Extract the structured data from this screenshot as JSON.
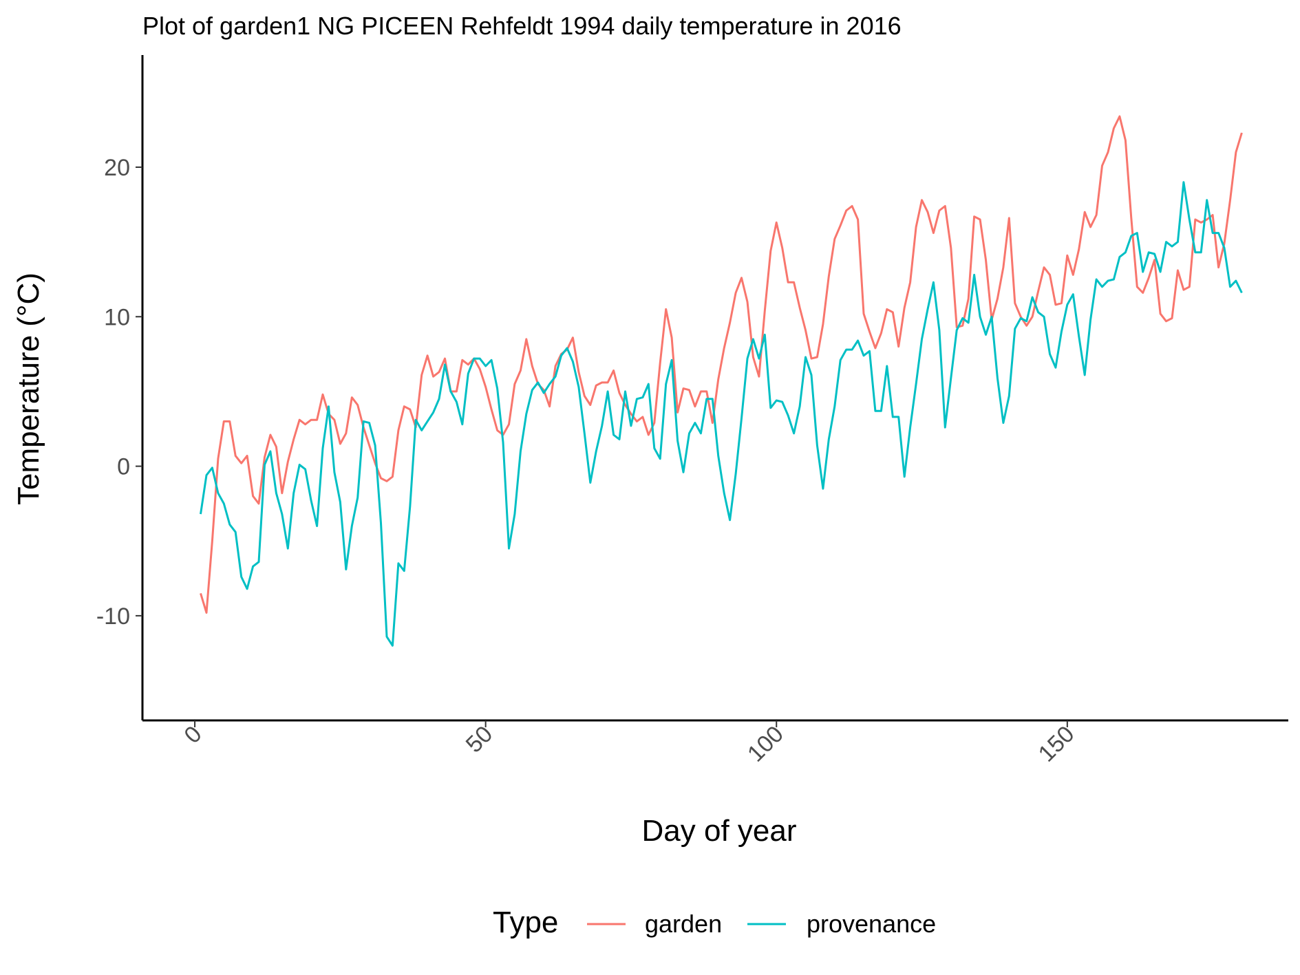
{
  "chart_data": {
    "type": "line",
    "title": "Plot of garden1 NG PICEEN Rehfeldt 1994 daily temperature in 2016",
    "xlabel": "Day of year",
    "ylabel": "Temperature (°C)",
    "xlim": [
      -9,
      188
    ],
    "ylim": [
      -17,
      27.5
    ],
    "x_ticks": [
      0,
      50,
      100,
      150
    ],
    "x_tick_labels": [
      "0",
      "50",
      "100",
      "150"
    ],
    "y_ticks": [
      -10,
      0,
      10,
      20
    ],
    "y_tick_labels": [
      "-10",
      "0",
      "10",
      "20"
    ],
    "grid": false,
    "legend": {
      "title": "Type",
      "position": "bottom"
    },
    "x": [
      1,
      2,
      3,
      4,
      5,
      6,
      7,
      8,
      9,
      10,
      11,
      12,
      13,
      14,
      15,
      16,
      17,
      18,
      19,
      20,
      21,
      22,
      23,
      24,
      25,
      26,
      27,
      28,
      29,
      30,
      31,
      32,
      33,
      34,
      35,
      36,
      37,
      38,
      39,
      40,
      41,
      42,
      43,
      44,
      45,
      46,
      47,
      48,
      49,
      50,
      51,
      52,
      53,
      54,
      55,
      56,
      57,
      58,
      59,
      60,
      61,
      62,
      63,
      64,
      65,
      66,
      67,
      68,
      69,
      70,
      71,
      72,
      73,
      74,
      75,
      76,
      77,
      78,
      79,
      80,
      81,
      82,
      83,
      84,
      85,
      86,
      87,
      88,
      89,
      90,
      91,
      92,
      93,
      94,
      95,
      96,
      97,
      98,
      99,
      100,
      101,
      102,
      103,
      104,
      105,
      106,
      107,
      108,
      109,
      110,
      111,
      112,
      113,
      114,
      115,
      116,
      117,
      118,
      119,
      120,
      121,
      122,
      123,
      124,
      125,
      126,
      127,
      128,
      129,
      130,
      131,
      132,
      133,
      134,
      135,
      136,
      137,
      138,
      139,
      140,
      141,
      142,
      143,
      144,
      145,
      146,
      147,
      148,
      149,
      150,
      151,
      152,
      153,
      154,
      155,
      156,
      157,
      158,
      159,
      160,
      161,
      162,
      163,
      164,
      165,
      166,
      167,
      168,
      169,
      170,
      171,
      172,
      173,
      174,
      175,
      176,
      177,
      178,
      179,
      180
    ],
    "series": [
      {
        "name": "garden",
        "color": "#F8766D",
        "values": [
          -8.5,
          -9.8,
          -5,
          0.5,
          3.0,
          3.0,
          0.7,
          0.2,
          0.7,
          -2.0,
          -2.5,
          0.6,
          2.1,
          1.3,
          -1.8,
          0.3,
          1.8,
          3.1,
          2.8,
          3.1,
          3.1,
          4.8,
          3.5,
          3.1,
          1.5,
          2.2,
          4.6,
          4.1,
          2.6,
          1.4,
          0.2,
          -0.8,
          -1.0,
          -0.7,
          2.4,
          4.0,
          3.8,
          2.6,
          6.1,
          7.4,
          6.0,
          6.3,
          7.2,
          5.0,
          5.0,
          7.1,
          6.8,
          7.2,
          6.5,
          5.3,
          3.8,
          2.4,
          2.1,
          2.8,
          5.5,
          6.4,
          8.5,
          6.7,
          5.5,
          5.1,
          4.0,
          6.7,
          7.5,
          7.8,
          8.6,
          6.3,
          4.7,
          4.1,
          5.4,
          5.6,
          5.6,
          6.4,
          4.9,
          4.1,
          3.5,
          3.0,
          3.3,
          2.1,
          2.9,
          6.9,
          10.5,
          8.6,
          3.6,
          5.2,
          5.1,
          4.0,
          5.0,
          5.0,
          2.9,
          5.8,
          7.9,
          9.6,
          11.6,
          12.6,
          11.0,
          7.3,
          6.0,
          10.4,
          14.4,
          16.3,
          14.6,
          12.3,
          12.3,
          10.6,
          9.1,
          7.2,
          7.3,
          9.5,
          12.7,
          15.2,
          16.1,
          17.1,
          17.4,
          16.5,
          10.2,
          9.0,
          7.9,
          8.9,
          10.5,
          10.3,
          8.0,
          10.6,
          12.3,
          16.0,
          17.8,
          17.0,
          15.6,
          17.1,
          17.4,
          14.6,
          9.3,
          9.4,
          11.2,
          16.7,
          16.5,
          13.8,
          9.8,
          11.2,
          13.3,
          16.6,
          10.9,
          10.0,
          9.4,
          10.0,
          11.7,
          13.3,
          12.8,
          10.8,
          10.9,
          14.1,
          12.8,
          14.5,
          17.0,
          16.0,
          16.8,
          20.1,
          21.0,
          22.6,
          23.4,
          21.8,
          16.6,
          12.0,
          11.6,
          12.6,
          13.8,
          10.2,
          9.7,
          9.9,
          13.1,
          11.8,
          12.0,
          16.5,
          16.3,
          16.5,
          16.8,
          13.3,
          14.9,
          17.8,
          21.0,
          22.3
        ]
      },
      {
        "name": "provenance",
        "color": "#00BFC4",
        "values": [
          -3.2,
          -0.6,
          -0.1,
          -1.8,
          -2.5,
          -3.9,
          -4.4,
          -7.4,
          -8.2,
          -6.7,
          -6.4,
          0.1,
          1.0,
          -1.8,
          -3.2,
          -5.5,
          -1.8,
          0.1,
          -0.2,
          -2.3,
          -4.0,
          1.2,
          4.0,
          -0.4,
          -2.4,
          -6.9,
          -4.0,
          -2.1,
          3.0,
          2.9,
          1.4,
          -3.8,
          -11.4,
          -12.0,
          -6.5,
          -7.0,
          -2.7,
          3.1,
          2.4,
          3.0,
          3.6,
          4.5,
          6.8,
          5.0,
          4.3,
          2.8,
          6.2,
          7.2,
          7.2,
          6.7,
          7.1,
          5.2,
          1.6,
          -5.5,
          -3.2,
          1.0,
          3.5,
          5.1,
          5.6,
          4.9,
          5.5,
          6.0,
          7.4,
          7.9,
          7.0,
          5.3,
          2.2,
          -1.1,
          1.0,
          2.7,
          5.0,
          2.1,
          1.8,
          5.0,
          2.7,
          4.5,
          4.6,
          5.5,
          1.2,
          0.5,
          5.5,
          7.1,
          1.7,
          -0.4,
          2.2,
          2.9,
          2.2,
          4.5,
          4.5,
          0.7,
          -1.8,
          -3.6,
          -0.5,
          3.2,
          7.2,
          8.5,
          7.2,
          8.8,
          3.9,
          4.4,
          4.3,
          3.4,
          2.2,
          4.0,
          7.3,
          6.1,
          1.4,
          -1.5,
          1.8,
          4.0,
          7.1,
          7.8,
          7.8,
          8.4,
          7.4,
          7.7,
          3.7,
          3.7,
          6.7,
          3.3,
          3.3,
          -0.7,
          2.6,
          5.5,
          8.5,
          10.5,
          12.3,
          9.1,
          2.6,
          5.9,
          9.1,
          9.9,
          9.6,
          12.8,
          10.0,
          8.8,
          10.0,
          5.9,
          2.9,
          4.7,
          9.2,
          9.9,
          9.7,
          11.3,
          10.3,
          10.0,
          7.5,
          6.6,
          9.0,
          10.8,
          11.5,
          8.7,
          6.1,
          9.8,
          12.5,
          12.0,
          12.4,
          12.5,
          14.0,
          14.3,
          15.4,
          15.6,
          13.0,
          14.3,
          14.2,
          13.0,
          15.0,
          14.7,
          15.0,
          19.0,
          16.5,
          14.3,
          14.3,
          17.8,
          15.6,
          15.6,
          14.6,
          12.0,
          12.4,
          11.6
        ]
      }
    ]
  }
}
